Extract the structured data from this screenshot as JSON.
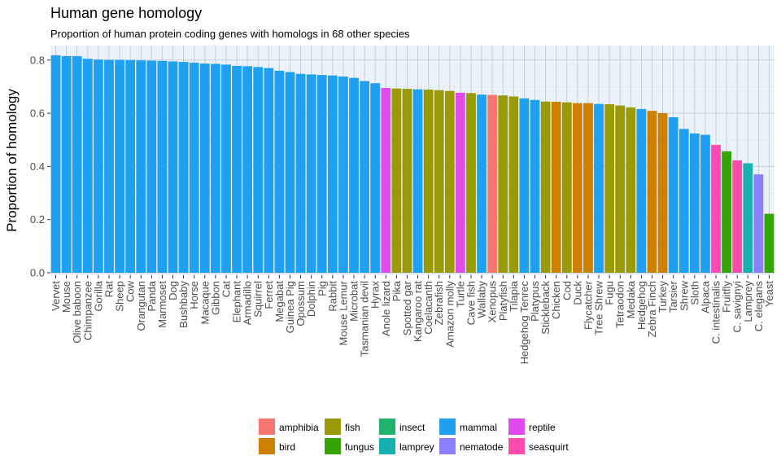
{
  "chart_data": {
    "type": "bar",
    "title": "Human gene homology",
    "subtitle": "Proportion of human protein coding genes with homologs in 68 other species",
    "xlabel": "",
    "ylabel": "Proportion of homology",
    "ylim": [
      0,
      0.83
    ],
    "yticks": [
      "0.0",
      "0.2",
      "0.4",
      "0.6",
      "0.8"
    ],
    "ytick_values": [
      0,
      0.2,
      0.4,
      0.6,
      0.8
    ],
    "grid": true,
    "legend_position": "bottom",
    "groups": [
      {
        "name": "amphibia",
        "color": "#F8766D"
      },
      {
        "name": "bird",
        "color": "#CD7F00"
      },
      {
        "name": "fish",
        "color": "#9A9A06"
      },
      {
        "name": "fungus",
        "color": "#36A406"
      },
      {
        "name": "insect",
        "color": "#1FB36E"
      },
      {
        "name": "lamprey",
        "color": "#18B0B0"
      },
      {
        "name": "mammal",
        "color": "#1FA0F0"
      },
      {
        "name": "nematode",
        "color": "#8B7FFF"
      },
      {
        "name": "reptile",
        "color": "#E04AEE"
      },
      {
        "name": "seasquirt",
        "color": "#FF4BAE"
      }
    ],
    "categories": [
      "Vervet",
      "Mouse",
      "Olive baboon",
      "Chimpanzee",
      "Gorilla",
      "Rat",
      "Sheep",
      "Cow",
      "Orangutan",
      "Panda",
      "Marmoset",
      "Dog",
      "Bushbaby",
      "Horse",
      "Macaque",
      "Gibbon",
      "Cat",
      "Elephant",
      "Armadillo",
      "Squirrel",
      "Ferret",
      "Megabat",
      "Guinea Pig",
      "Opossum",
      "Dolphin",
      "Pig",
      "Rabbit",
      "Mouse Lemur",
      "Microbat",
      "Tasmanian devil",
      "Hyrax",
      "Anole lizard",
      "Pika",
      "Spotted gar",
      "Kangaroo rat",
      "Coelacanth",
      "Zebrafish",
      "Amazon molly",
      "Turtle",
      "Cave fish",
      "Wallaby",
      "Xenopus",
      "Platyfish",
      "Tilapia",
      "Hedgehog Tenrec",
      "Platypus",
      "Stickleback",
      "Chicken",
      "Cod",
      "Duck",
      "Flycatcher",
      "Tree Shrew",
      "Fugu",
      "Tetraodon",
      "Medaka",
      "Hedgehog",
      "Zebra Finch",
      "Turkey",
      "Tarsier",
      "Shrew",
      "Sloth",
      "Alpaca",
      "C. intestinalis",
      "Fruitfly",
      "C. savignyi",
      "Lamprey",
      "C. elegans",
      "Yeast"
    ],
    "values": [
      0.818,
      0.815,
      0.815,
      0.805,
      0.802,
      0.801,
      0.801,
      0.8,
      0.799,
      0.798,
      0.797,
      0.795,
      0.793,
      0.79,
      0.787,
      0.786,
      0.783,
      0.778,
      0.777,
      0.774,
      0.77,
      0.76,
      0.755,
      0.748,
      0.746,
      0.744,
      0.742,
      0.738,
      0.733,
      0.721,
      0.713,
      0.695,
      0.693,
      0.692,
      0.69,
      0.689,
      0.687,
      0.684,
      0.677,
      0.676,
      0.67,
      0.669,
      0.667,
      0.663,
      0.656,
      0.65,
      0.644,
      0.643,
      0.641,
      0.638,
      0.638,
      0.635,
      0.634,
      0.629,
      0.622,
      0.616,
      0.609,
      0.6,
      0.585,
      0.541,
      0.524,
      0.519,
      0.481,
      0.457,
      0.423,
      0.412,
      0.37,
      0.222
    ],
    "group_of": [
      "mammal",
      "mammal",
      "mammal",
      "mammal",
      "mammal",
      "mammal",
      "mammal",
      "mammal",
      "mammal",
      "mammal",
      "mammal",
      "mammal",
      "mammal",
      "mammal",
      "mammal",
      "mammal",
      "mammal",
      "mammal",
      "mammal",
      "mammal",
      "mammal",
      "mammal",
      "mammal",
      "mammal",
      "mammal",
      "mammal",
      "mammal",
      "mammal",
      "mammal",
      "mammal",
      "mammal",
      "reptile",
      "fish",
      "fish",
      "mammal",
      "fish",
      "fish",
      "fish",
      "reptile",
      "fish",
      "mammal",
      "amphibia",
      "fish",
      "fish",
      "mammal",
      "mammal",
      "fish",
      "bird",
      "fish",
      "bird",
      "bird",
      "mammal",
      "fish",
      "fish",
      "fish",
      "mammal",
      "bird",
      "bird",
      "mammal",
      "mammal",
      "mammal",
      "mammal",
      "seasquirt",
      "fungus",
      "seasquirt",
      "lamprey",
      "nematode",
      "fungus"
    ]
  }
}
